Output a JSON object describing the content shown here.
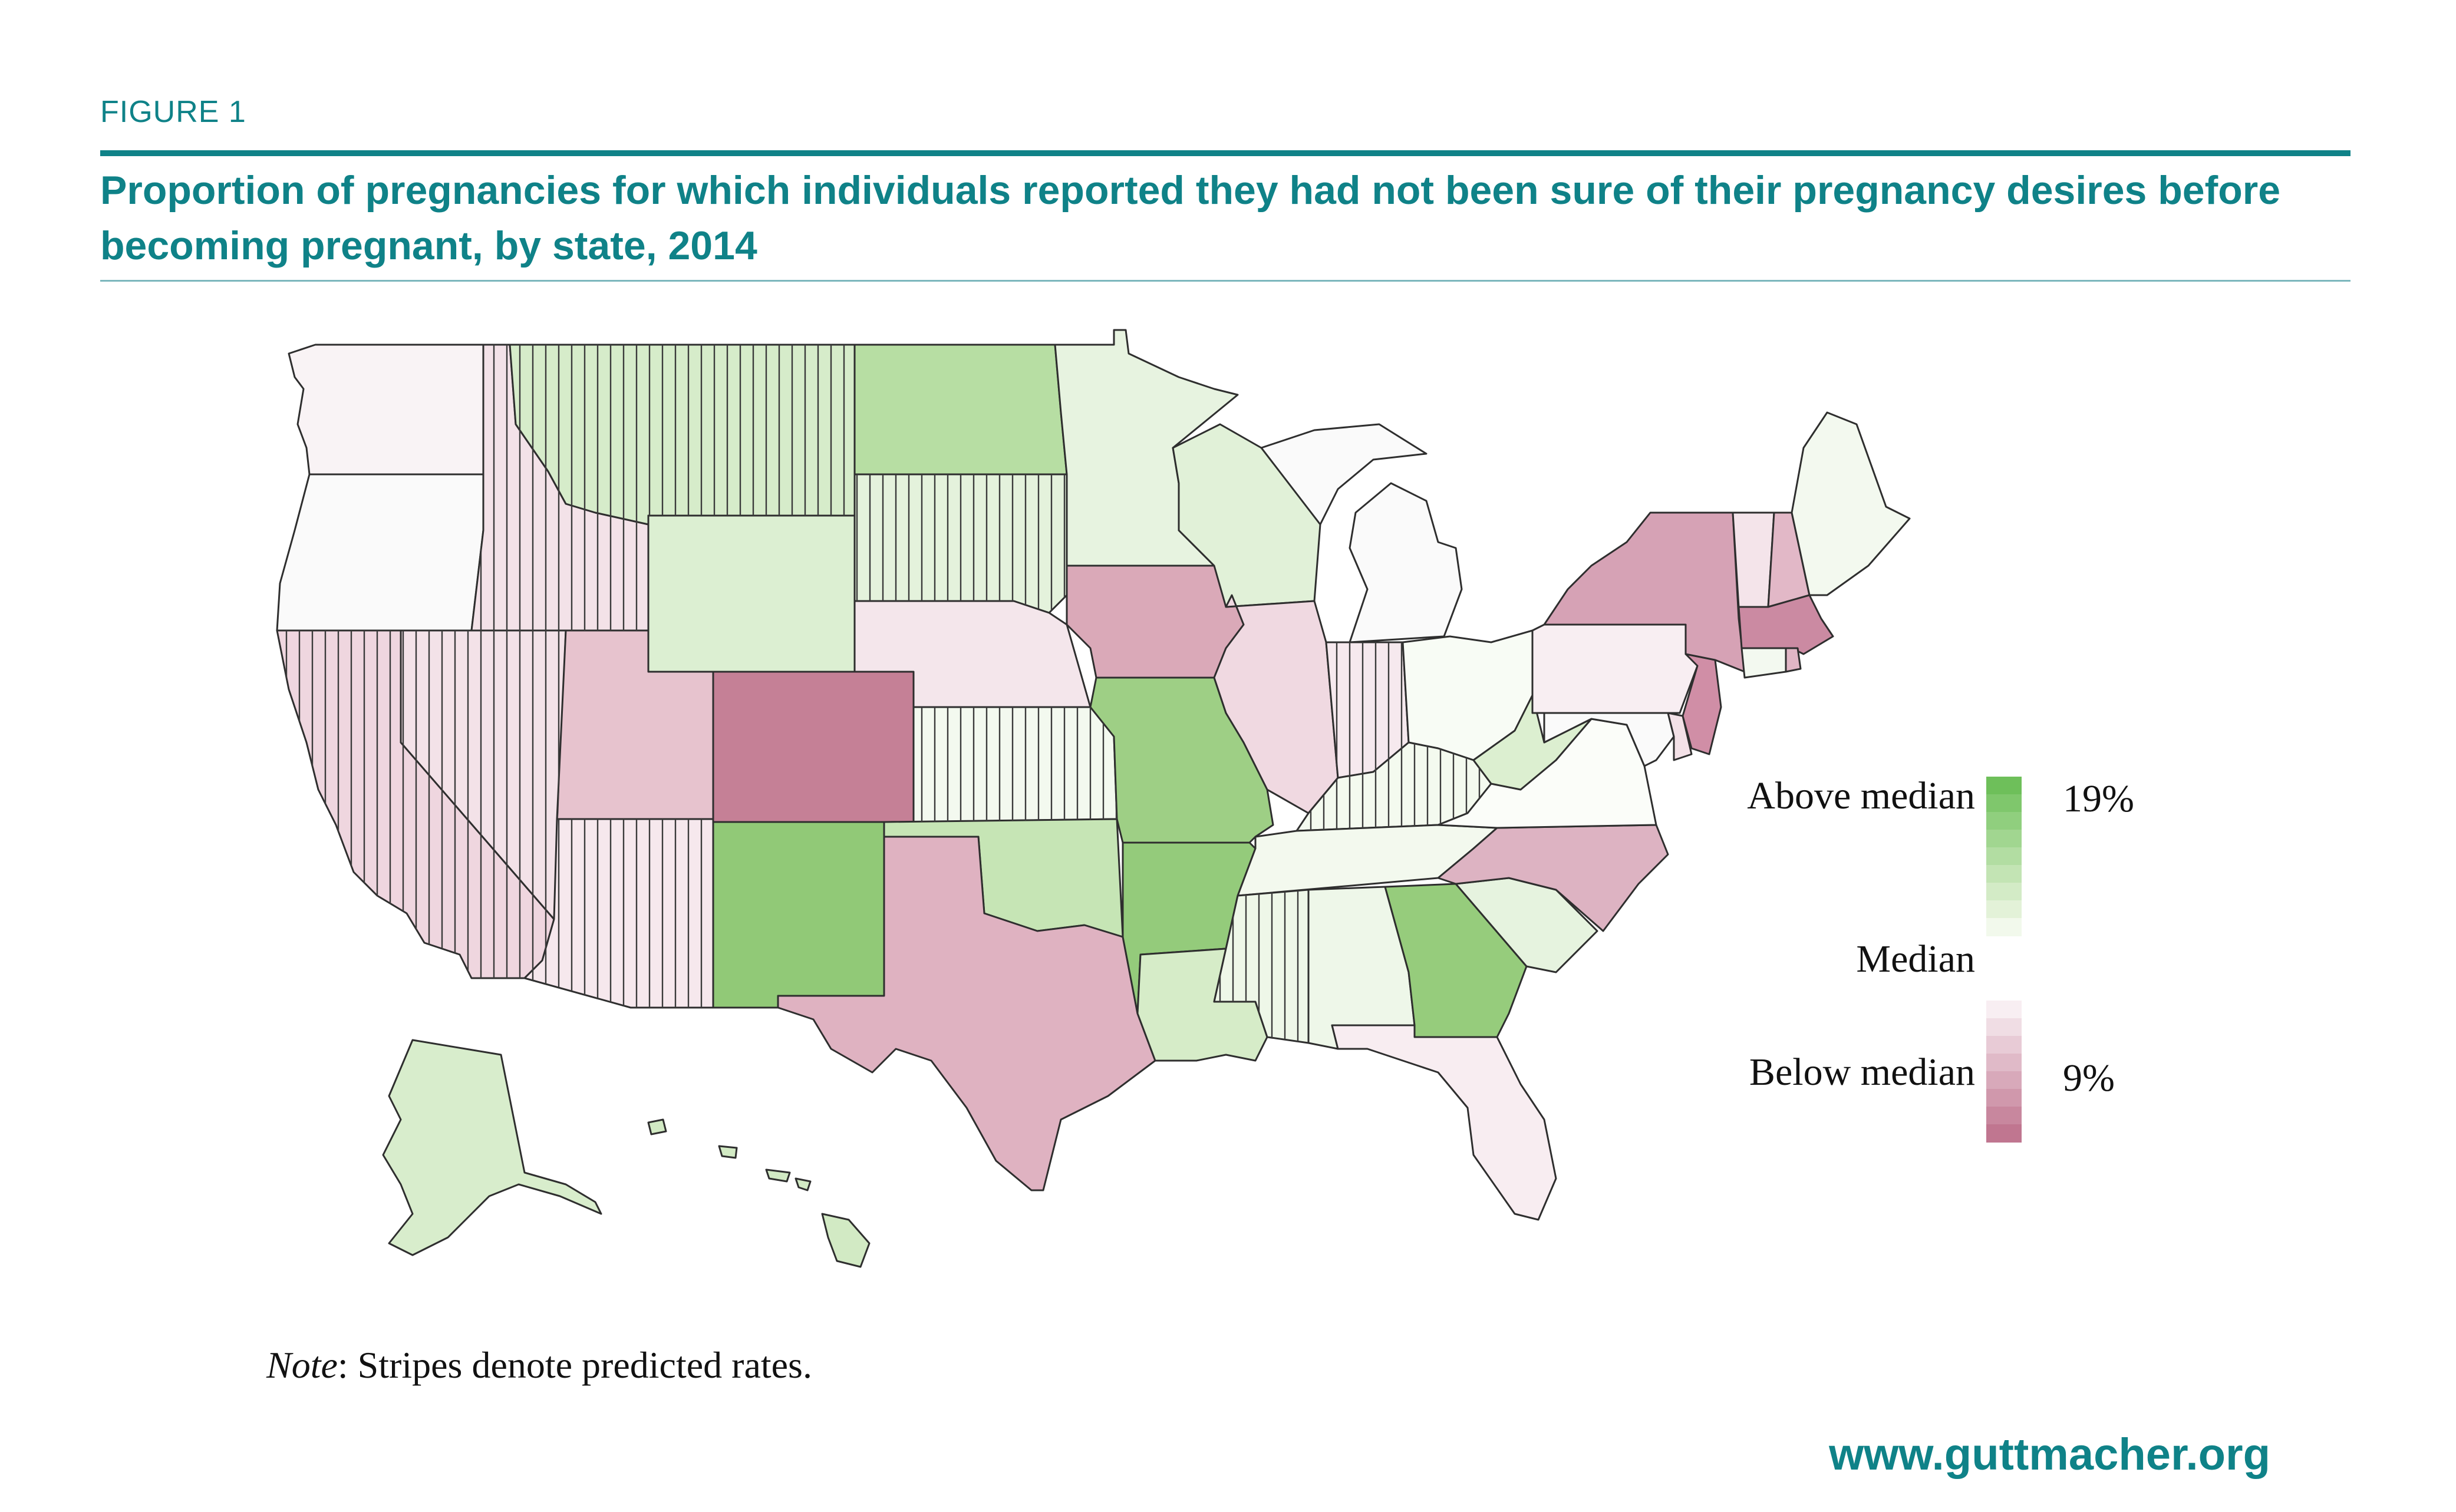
{
  "figure": {
    "label": "FIGURE 1",
    "title": "Proportion of pregnancies for which individuals reported they had not been sure of their pregnancy desires before becoming pregnant, by state, 2014"
  },
  "legend": {
    "above_label": "Above median",
    "median_label": "Median",
    "below_label": "Below median",
    "max_label": "19%",
    "min_label": "9%",
    "above_colors": [
      "#6ebf5a",
      "#7fc76c",
      "#90cf7e",
      "#a1d690",
      "#b2dda2",
      "#c3e4b4",
      "#d3ebc6",
      "#e3f2d8",
      "#f2f9ec"
    ],
    "below_colors": [
      "#f8eef2",
      "#f0dde4",
      "#e8cbd6",
      "#e0bac8",
      "#d8a9ba",
      "#d098ac",
      "#c8879e",
      "#c07690"
    ]
  },
  "note": {
    "prefix": "Note",
    "text": ": Stripes denote predicted rates."
  },
  "source": "www.guttmacher.org",
  "states": {
    "WA": {
      "color": "#f9f3f5",
      "predicted": false
    },
    "OR": {
      "color": "#fafafa",
      "predicted": false
    },
    "CA": {
      "color": "#efd6df",
      "predicted": true
    },
    "NV": {
      "color": "#f3e2e8",
      "predicted": true
    },
    "ID": {
      "color": "#f3e2e8",
      "predicted": true
    },
    "MT": {
      "color": "#d6ecca",
      "predicted": true
    },
    "WY": {
      "color": "#dcefd2",
      "predicted": false
    },
    "UT": {
      "color": "#e7c3ce",
      "predicted": false
    },
    "AZ": {
      "color": "#f6e8ed",
      "predicted": true
    },
    "CO": {
      "color": "#c58096",
      "predicted": false
    },
    "NM": {
      "color": "#91c977",
      "predicted": false
    },
    "ND": {
      "color": "#b7dea3",
      "predicted": false
    },
    "SD": {
      "color": "#e4f2dc",
      "predicted": true
    },
    "NE": {
      "color": "#f4e6eb",
      "predicted": false
    },
    "KS": {
      "color": "#f3f9ef",
      "predicted": true
    },
    "OK": {
      "color": "#c6e5b5",
      "predicted": false
    },
    "TX": {
      "color": "#dfb2c1",
      "predicted": false
    },
    "MN": {
      "color": "#e7f3e0",
      "predicted": false
    },
    "IA": {
      "color": "#daa9b8",
      "predicted": false
    },
    "MO": {
      "color": "#9ecf85",
      "predicted": false
    },
    "AR": {
      "color": "#94cb7b",
      "predicted": false
    },
    "LA": {
      "color": "#d6ecc8",
      "predicted": false
    },
    "WI": {
      "color": "#e1f1d8",
      "predicted": false
    },
    "IL": {
      "color": "#f0d9e1",
      "predicted": false
    },
    "MI": {
      "color": "#fafafa",
      "predicted": false
    },
    "IN": {
      "color": "#f6e9ee",
      "predicted": true
    },
    "OH": {
      "color": "#f8fcf5",
      "predicted": false
    },
    "KY": {
      "color": "#f4faef",
      "predicted": true
    },
    "TN": {
      "color": "#f3f9ee",
      "predicted": false
    },
    "MS": {
      "color": "#eef7e8",
      "predicted": true
    },
    "AL": {
      "color": "#eef7e9",
      "predicted": false
    },
    "GA": {
      "color": "#96cc7c",
      "predicted": false
    },
    "FL": {
      "color": "#f8edf1",
      "predicted": false
    },
    "SC": {
      "color": "#e6f3df",
      "predicted": false
    },
    "NC": {
      "color": "#ddb3c2",
      "predicted": false
    },
    "VA": {
      "color": "#fbfdf9",
      "predicted": false
    },
    "WV": {
      "color": "#dcefd0",
      "predicted": false
    },
    "PA": {
      "color": "#f8eef2",
      "predicted": false
    },
    "NY": {
      "color": "#d6a2b5",
      "predicted": false
    },
    "VT": {
      "color": "#f4e4ea",
      "predicted": false
    },
    "NH": {
      "color": "#e2b8c7",
      "predicted": false
    },
    "ME": {
      "color": "#f3f9ef",
      "predicted": false
    },
    "MA": {
      "color": "#cb8aa2",
      "predicted": false
    },
    "CT": {
      "color": "#f3f9f0",
      "predicted": false
    },
    "RI": {
      "color": "#e0b6c5",
      "predicted": false
    },
    "NJ": {
      "color": "#d08ea6",
      "predicted": false
    },
    "DE": {
      "color": "#f3e1e7",
      "predicted": false
    },
    "MD": {
      "color": "#fafafa",
      "predicted": false
    },
    "AK": {
      "color": "#d8edcc",
      "predicted": false
    },
    "HI": {
      "color": "#d2eac4",
      "predicted": false
    }
  }
}
